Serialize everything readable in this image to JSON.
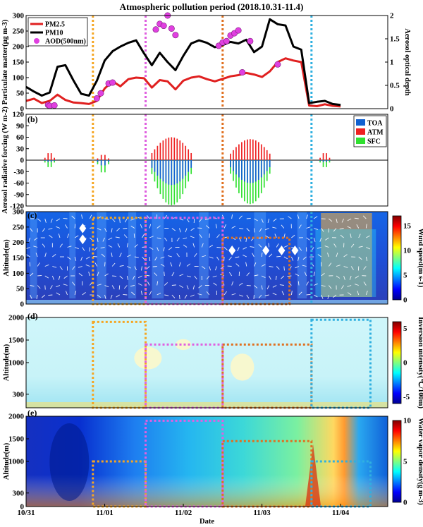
{
  "figure": {
    "title": "Atmospheric pollution period (2018.10.31-11.4)",
    "xlabel": "Date",
    "x_ticks": [
      "10/31",
      "11/01",
      "11/02",
      "11/03",
      "11/04"
    ]
  },
  "period_markers": [
    {
      "day": 0.85,
      "color": "#f5a623"
    },
    {
      "day": 1.52,
      "color": "#e060e0"
    },
    {
      "day": 2.5,
      "color": "#e07020"
    },
    {
      "day": 3.63,
      "color": "#30b0e0"
    }
  ],
  "chart_data": [
    {
      "panel": "(a)",
      "type": "line",
      "ylabel": "Particulate matter(μg m-3)",
      "y2label": "Aerosol optical depth",
      "ylim": [
        0,
        300
      ],
      "y2lim": [
        0,
        2
      ],
      "yticks": [
        "0",
        "50",
        "100",
        "150",
        "200",
        "250",
        "300"
      ],
      "y2ticks": [
        "0",
        "0.5",
        "1",
        "1.5",
        "2"
      ],
      "x": [
        0,
        0.1,
        0.2,
        0.3,
        0.4,
        0.5,
        0.6,
        0.7,
        0.8,
        0.9,
        1.0,
        1.1,
        1.2,
        1.3,
        1.4,
        1.5,
        1.6,
        1.7,
        1.8,
        1.9,
        2.0,
        2.1,
        2.2,
        2.3,
        2.4,
        2.5,
        2.6,
        2.7,
        2.8,
        2.9,
        3.0,
        3.1,
        3.2,
        3.3,
        3.4,
        3.5,
        3.6,
        3.7,
        3.8,
        3.9,
        4.0
      ],
      "series": [
        {
          "name": "PM2.5",
          "color": "#e02020",
          "values": [
            25,
            32,
            18,
            25,
            45,
            28,
            20,
            18,
            15,
            25,
            65,
            88,
            72,
            95,
            100,
            98,
            68,
            92,
            88,
            62,
            90,
            100,
            104,
            95,
            88,
            96,
            104,
            108,
            115,
            110,
            102,
            120,
            150,
            162,
            155,
            150,
            10,
            8,
            14,
            9,
            7
          ]
        },
        {
          "name": "PM10",
          "color": "#000000",
          "values": [
            70,
            55,
            42,
            52,
            135,
            140,
            92,
            48,
            42,
            90,
            155,
            185,
            200,
            212,
            220,
            178,
            140,
            180,
            150,
            124,
            170,
            210,
            220,
            212,
            198,
            205,
            215,
            210,
            222,
            182,
            200,
            288,
            272,
            268,
            200,
            190,
            18,
            22,
            25,
            15,
            12
          ]
        },
        {
          "name": "AOD(500nm)",
          "color": "#e040e0",
          "marker": "circle",
          "points": [
            [
              0.28,
              0.08
            ],
            [
              0.3,
              0.06
            ],
            [
              0.36,
              0.07
            ],
            [
              0.9,
              0.22
            ],
            [
              0.95,
              0.33
            ],
            [
              1.05,
              0.54
            ],
            [
              1.1,
              0.56
            ],
            [
              1.65,
              1.7
            ],
            [
              1.7,
              1.82
            ],
            [
              1.75,
              1.78
            ],
            [
              1.8,
              2.0
            ],
            [
              1.85,
              1.72
            ],
            [
              1.9,
              1.58
            ],
            [
              2.45,
              1.35
            ],
            [
              2.5,
              1.42
            ],
            [
              2.55,
              1.45
            ],
            [
              2.6,
              1.57
            ],
            [
              2.65,
              1.62
            ],
            [
              2.7,
              1.68
            ],
            [
              2.75,
              0.78
            ],
            [
              2.85,
              1.45
            ],
            [
              3.2,
              0.95
            ]
          ]
        }
      ]
    },
    {
      "panel": "(b)",
      "type": "bar",
      "ylabel": "Aerosol radiative forcing (W m-2)",
      "ylim": [
        -120,
        120
      ],
      "yticks": [
        "120",
        "90",
        "60",
        "30",
        "0",
        "-30",
        "-60",
        "-90",
        "-120"
      ],
      "series": [
        {
          "name": "TOA",
          "color": "#1060d0"
        },
        {
          "name": "ATM",
          "color": "#ee2020"
        },
        {
          "name": "SFC",
          "color": "#30e030"
        }
      ],
      "groups": [
        {
          "center": 0.3,
          "width": 0.12,
          "atm_max": 20,
          "toa_max": -5,
          "sfc_max": -20
        },
        {
          "center": 0.98,
          "width": 0.14,
          "atm_max": 15,
          "toa_max": -15,
          "sfc_max": -35
        },
        {
          "center": 1.85,
          "width": 0.5,
          "atm_max": 60,
          "toa_max": -65,
          "sfc_max": -118
        },
        {
          "center": 2.85,
          "width": 0.5,
          "atm_max": 55,
          "toa_max": -60,
          "sfc_max": -115
        },
        {
          "center": 3.8,
          "width": 0.12,
          "atm_max": 20,
          "toa_max": -5,
          "sfc_max": -20
        }
      ]
    },
    {
      "panel": "(c)",
      "type": "heatmap",
      "ylabel": "Altitude(m)",
      "cbar_label": "Wind speed(m s-1)",
      "ylim": [
        0,
        300
      ],
      "yticks": [
        "0",
        "50",
        "100",
        "150",
        "200",
        "250",
        "300"
      ],
      "cbar_ticks": [
        "0",
        "5",
        "10",
        "15"
      ],
      "boxes": [
        {
          "x0": 0.85,
          "x1": 1.52,
          "y0": 0,
          "y1": 280,
          "color": "#f5a623"
        },
        {
          "x0": 1.52,
          "x1": 2.5,
          "y0": 0,
          "y1": 280,
          "color": "#e060e0"
        },
        {
          "x0": 2.5,
          "x1": 3.35,
          "y0": 0,
          "y1": 215,
          "color": "#e07020"
        }
      ]
    },
    {
      "panel": "(d)",
      "type": "heatmap",
      "ylabel": "Altitude(m)",
      "cbar_label": "Inversion intensity(℃/100m)",
      "ylim": [
        0,
        2000
      ],
      "yticks": [
        "300",
        "1000",
        "1500",
        "2000"
      ],
      "cbar_ticks": [
        "-5",
        "0",
        "5"
      ],
      "boxes": [
        {
          "x0": 0.85,
          "x1": 1.52,
          "y0": 0,
          "y1": 1900,
          "color": "#f5a623"
        },
        {
          "x0": 1.52,
          "x1": 2.5,
          "y0": 0,
          "y1": 1400,
          "color": "#e060e0"
        },
        {
          "x0": 2.5,
          "x1": 3.63,
          "y0": 0,
          "y1": 1400,
          "color": "#e07020"
        },
        {
          "x0": 3.63,
          "x1": 4.38,
          "y0": 0,
          "y1": 1950,
          "color": "#30b0e0"
        }
      ]
    },
    {
      "panel": "(e)",
      "type": "heatmap",
      "ylabel": "Altitude(m)",
      "cbar_label": "Water vapor density(g m-3)",
      "ylim": [
        0,
        2000
      ],
      "yticks": [
        "0",
        "300",
        "1000",
        "1500",
        "2000"
      ],
      "cbar_ticks": [
        "0",
        "5",
        "10"
      ],
      "boxes": [
        {
          "x0": 0.85,
          "x1": 1.52,
          "y0": 0,
          "y1": 1000,
          "color": "#f5a623"
        },
        {
          "x0": 1.52,
          "x1": 2.5,
          "y0": 0,
          "y1": 1900,
          "color": "#e060e0"
        },
        {
          "x0": 2.5,
          "x1": 3.63,
          "y0": 0,
          "y1": 1450,
          "color": "#e07020"
        },
        {
          "x0": 3.63,
          "x1": 4.38,
          "y0": 0,
          "y1": 1000,
          "color": "#30b0e0"
        }
      ]
    }
  ]
}
